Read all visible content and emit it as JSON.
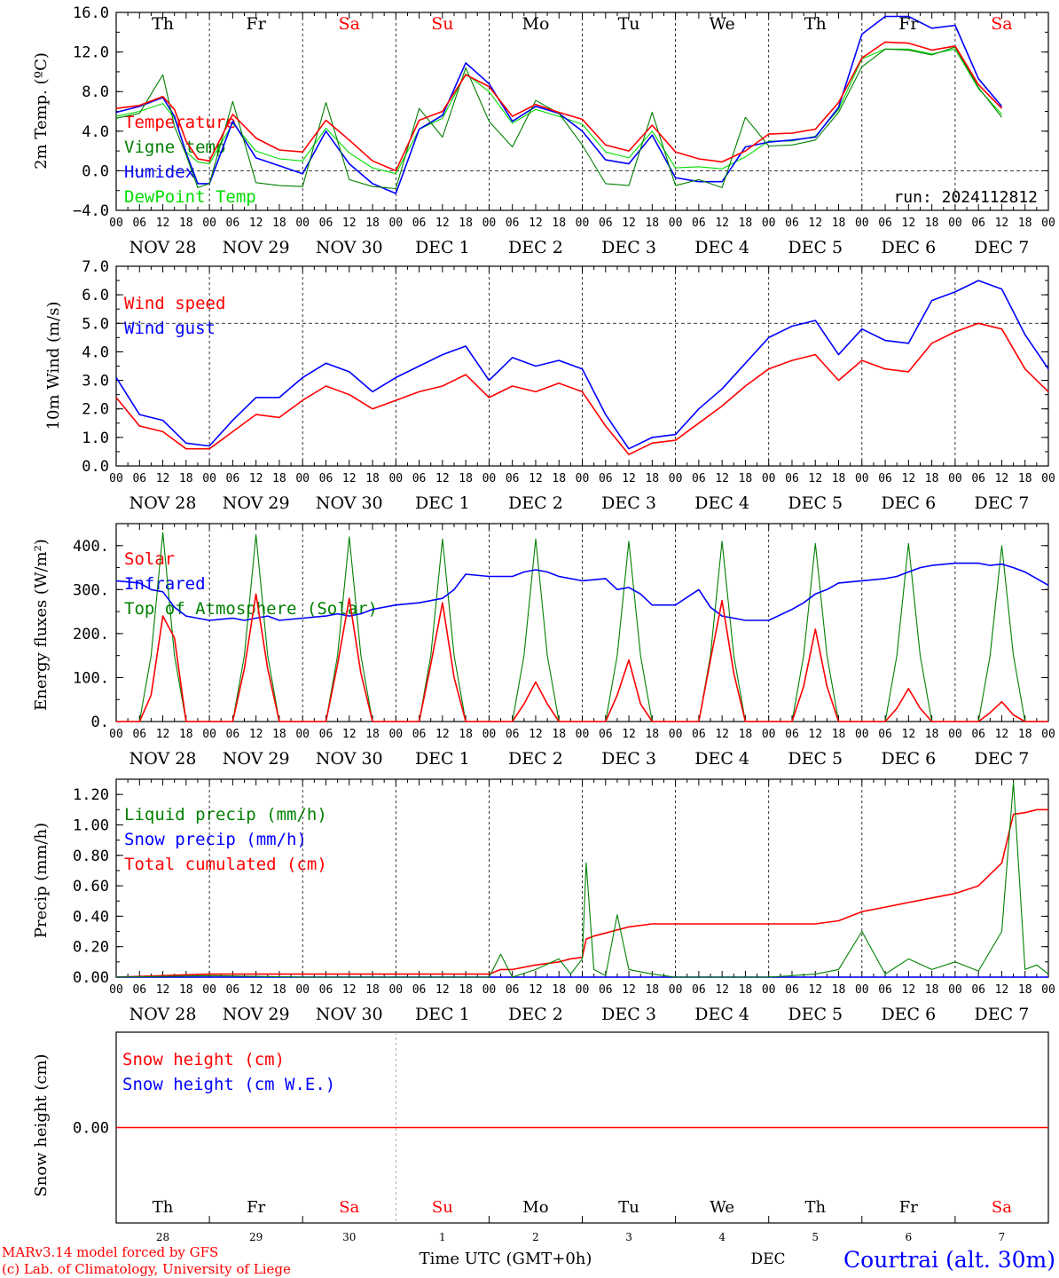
{
  "days": {
    "names": [
      "Th",
      "Fr",
      "Sa",
      "Su",
      "Mo",
      "Tu",
      "We",
      "Th",
      "Fr",
      "Sa"
    ],
    "weekend_flags": [
      false,
      false,
      true,
      true,
      false,
      false,
      false,
      false,
      false,
      true
    ],
    "dates": [
      "NOV 28",
      "NOV 29",
      "NOV 30",
      "DEC  1",
      "DEC  2",
      "DEC  3",
      "DEC  4",
      "DEC  5",
      "DEC  6",
      "DEC  7"
    ],
    "day_numbers": [
      "28",
      "29",
      "30",
      "1",
      "2",
      "3",
      "4",
      "5",
      "6",
      "7"
    ],
    "hour_ticks": [
      "00",
      "06",
      "12",
      "18"
    ],
    "end_tick": "00"
  },
  "colors": {
    "red": "#ff0000",
    "green": "#008000",
    "blue": "#0000ff",
    "lightgreen": "#00dd00",
    "gray": "#555555"
  },
  "footer": {
    "model": "MARv3.14 model forced by GFS",
    "copyright": "(c) Lab. of Climatology, University of Liege",
    "time_label": "Time UTC (GMT+0h)",
    "month_label": "DEC",
    "station": "Courtrai (alt. 30m)"
  },
  "chart_data": [
    {
      "type": "line",
      "ylabel": "2m Temp. (ºC)",
      "ylim": [
        -4,
        16
      ],
      "yticks": [
        "16.0",
        "12.0",
        "8.0",
        "4.0",
        "0.0",
        "−4.0"
      ],
      "ytick_values": [
        16,
        12,
        8,
        4,
        0,
        -4
      ],
      "hline": 0,
      "run_label": "run: 2024112812",
      "x_hours": [
        0,
        6,
        12,
        15,
        18,
        21,
        24,
        30,
        36,
        42,
        48,
        54,
        60,
        66,
        72,
        78,
        84,
        90,
        96,
        102,
        108,
        114,
        120,
        126,
        132,
        138,
        144,
        150,
        156,
        162,
        168,
        174,
        180,
        186,
        192,
        198,
        204,
        210,
        216,
        222,
        228,
        234,
        240
      ],
      "series": [
        {
          "name": "Temperature",
          "color": "red",
          "values": [
            6.3,
            6.6,
            7.5,
            6.2,
            3.0,
            1.2,
            1.0,
            5.7,
            3.3,
            2.1,
            1.9,
            5.1,
            3.1,
            1.0,
            0.0,
            5.1,
            6.0,
            9.7,
            8.5,
            5.5,
            6.7,
            5.9,
            5.2,
            2.6,
            2.0,
            4.6,
            1.9,
            1.2,
            0.9,
            2.0,
            3.7,
            3.8,
            4.2,
            6.9,
            11.4,
            13.0,
            12.9,
            12.2,
            12.6,
            8.7,
            6.3,
            null,
            null
          ]
        },
        {
          "name": "Vigne temp",
          "color": "green",
          "values": [
            5.3,
            5.8,
            9.7,
            4.5,
            1.6,
            -1.7,
            -1.3,
            7.0,
            -1.2,
            -1.5,
            -1.6,
            6.9,
            -0.9,
            -1.6,
            -1.8,
            6.3,
            3.4,
            10.4,
            5.0,
            2.4,
            7.1,
            5.8,
            2.6,
            -1.3,
            -1.5,
            5.9,
            -1.5,
            -0.9,
            -1.7,
            5.4,
            2.5,
            2.6,
            3.1,
            5.9,
            10.5,
            12.3,
            12.2,
            11.7,
            12.5,
            8.4,
            5.4,
            null,
            null
          ]
        },
        {
          "name": "Humidex",
          "color": "blue",
          "values": [
            5.9,
            6.5,
            7.4,
            5.5,
            1.8,
            -1.3,
            -1.3,
            5.0,
            1.3,
            0.5,
            -0.3,
            4.0,
            0.7,
            -1.3,
            -2.3,
            4.2,
            5.6,
            10.9,
            8.8,
            5.0,
            6.5,
            5.8,
            4.0,
            1.1,
            0.7,
            3.6,
            -0.7,
            -1.1,
            -1.1,
            2.4,
            2.9,
            3.1,
            3.4,
            6.4,
            13.8,
            15.6,
            15.6,
            14.4,
            14.7,
            9.3,
            6.5,
            null,
            null
          ]
        },
        {
          "name": "DewPoint Temp",
          "color": "lightgreen",
          "values": [
            5.5,
            6.0,
            6.8,
            5.3,
            1.9,
            0.9,
            0.7,
            4.8,
            2.0,
            1.2,
            1.0,
            4.3,
            1.8,
            0.3,
            -0.3,
            4.2,
            5.3,
            9.8,
            8.0,
            4.8,
            6.2,
            5.5,
            4.7,
            1.9,
            1.3,
            4.0,
            0.3,
            0.4,
            0.2,
            1.4,
            3.0,
            3.0,
            3.5,
            6.2,
            11.3,
            12.3,
            12.3,
            11.8,
            12.3,
            8.3,
            5.7,
            null,
            null
          ]
        }
      ]
    },
    {
      "type": "line",
      "ylabel": "10m Wind (m/s)",
      "ylim": [
        0,
        7
      ],
      "yticks": [
        "7.0",
        "6.0",
        "5.0",
        "4.0",
        "3.0",
        "2.0",
        "1.0",
        "0.0"
      ],
      "ytick_values": [
        7,
        6,
        5,
        4,
        3,
        2,
        1,
        0
      ],
      "hline": 5,
      "x_hours": [
        0,
        6,
        12,
        18,
        24,
        30,
        36,
        42,
        48,
        54,
        60,
        66,
        72,
        78,
        84,
        90,
        96,
        102,
        108,
        114,
        120,
        126,
        132,
        138,
        144,
        150,
        156,
        162,
        168,
        174,
        180,
        186,
        192,
        198,
        204,
        210,
        216,
        222,
        228,
        234,
        240
      ],
      "series": [
        {
          "name": "Wind speed",
          "color": "red",
          "values": [
            2.4,
            1.4,
            1.2,
            0.6,
            0.6,
            1.2,
            1.8,
            1.7,
            2.3,
            2.8,
            2.5,
            2.0,
            2.3,
            2.6,
            2.8,
            3.2,
            2.4,
            2.8,
            2.6,
            2.9,
            2.6,
            1.4,
            0.4,
            0.8,
            0.9,
            1.5,
            2.1,
            2.8,
            3.4,
            3.7,
            3.9,
            3.0,
            3.7,
            3.4,
            3.3,
            4.3,
            4.7,
            5.0,
            4.8,
            3.4,
            2.6
          ]
        },
        {
          "name": "Wind gust",
          "color": "blue",
          "values": [
            3.1,
            1.8,
            1.6,
            0.8,
            0.7,
            1.6,
            2.4,
            2.4,
            3.1,
            3.6,
            3.3,
            2.6,
            3.1,
            3.5,
            3.9,
            4.2,
            3.0,
            3.8,
            3.5,
            3.7,
            3.4,
            1.8,
            0.6,
            1.0,
            1.1,
            2.0,
            2.7,
            3.6,
            4.5,
            4.9,
            5.1,
            3.9,
            4.8,
            4.4,
            4.3,
            5.8,
            6.1,
            6.5,
            6.2,
            4.6,
            3.4
          ]
        }
      ]
    },
    {
      "type": "line",
      "ylabel": "Energy fluxes (W/m²)",
      "ylim": [
        0,
        450
      ],
      "yticks": [
        "400.",
        "300.",
        "200.",
        "100.",
        "0."
      ],
      "ytick_values": [
        400,
        300,
        200,
        100,
        0
      ],
      "x_hours": [
        0,
        6,
        9,
        12,
        15,
        18,
        24,
        30,
        33,
        36,
        39,
        42,
        48,
        54,
        57,
        60,
        63,
        66,
        72,
        78,
        81,
        84,
        87,
        90,
        96,
        102,
        105,
        108,
        111,
        114,
        120,
        126,
        129,
        132,
        135,
        138,
        144,
        150,
        153,
        156,
        159,
        162,
        168,
        174,
        177,
        180,
        183,
        186,
        192,
        198,
        201,
        204,
        207,
        210,
        216,
        222,
        225,
        228,
        231,
        234,
        240
      ],
      "series": [
        {
          "name": "Solar",
          "color": "red",
          "values": [
            0,
            0,
            60,
            240,
            190,
            0,
            0,
            0,
            120,
            290,
            120,
            0,
            0,
            0,
            130,
            280,
            110,
            0,
            0,
            0,
            130,
            270,
            100,
            0,
            0,
            0,
            40,
            90,
            40,
            0,
            0,
            0,
            60,
            140,
            40,
            0,
            0,
            0,
            140,
            275,
            110,
            0,
            0,
            0,
            80,
            210,
            80,
            0,
            0,
            0,
            30,
            75,
            30,
            0,
            0,
            0,
            20,
            45,
            15,
            0,
            0
          ]
        },
        {
          "name": "Infrared",
          "color": "blue",
          "values": [
            320,
            315,
            300,
            295,
            260,
            240,
            230,
            235,
            230,
            235,
            240,
            230,
            235,
            240,
            245,
            240,
            245,
            255,
            265,
            270,
            275,
            280,
            300,
            335,
            330,
            330,
            340,
            345,
            340,
            330,
            320,
            325,
            300,
            305,
            290,
            265,
            265,
            300,
            260,
            240,
            235,
            230,
            230,
            255,
            270,
            290,
            300,
            315,
            320,
            325,
            330,
            340,
            350,
            355,
            360,
            360,
            355,
            358,
            350,
            340,
            310
          ]
        },
        {
          "name": "Top of Atmosphere (Solar)",
          "color": "green",
          "values": [
            0,
            0,
            150,
            430,
            150,
            0,
            0,
            0,
            150,
            425,
            150,
            0,
            0,
            0,
            150,
            420,
            150,
            0,
            0,
            0,
            150,
            415,
            150,
            0,
            0,
            0,
            150,
            415,
            150,
            0,
            0,
            0,
            150,
            410,
            150,
            0,
            0,
            0,
            150,
            410,
            150,
            0,
            0,
            0,
            150,
            405,
            150,
            0,
            0,
            0,
            150,
            405,
            150,
            0,
            0,
            0,
            150,
            400,
            150,
            0,
            0
          ]
        }
      ]
    },
    {
      "type": "line",
      "ylabel": "Precip (mm/h)",
      "ylim": [
        0,
        1.3
      ],
      "yticks": [
        "1.20",
        "1.00",
        "0.80",
        "0.60",
        "0.40",
        "0.20",
        "0.00"
      ],
      "ytick_values": [
        1.2,
        1.0,
        0.8,
        0.6,
        0.4,
        0.2,
        0.0
      ],
      "x_hours": [
        0,
        24,
        48,
        72,
        96,
        99,
        102,
        108,
        114,
        117,
        120,
        121,
        123,
        126,
        129,
        132,
        138,
        144,
        168,
        180,
        186,
        192,
        198,
        204,
        210,
        216,
        222,
        228,
        231,
        234,
        237,
        240
      ],
      "series": [
        {
          "name": "Liquid precip (mm/h)",
          "color": "green",
          "values": [
            0,
            0.01,
            0,
            0,
            0,
            0.15,
            0,
            0.05,
            0.12,
            0.02,
            0.12,
            0.75,
            0.05,
            0.01,
            0.41,
            0.05,
            0.02,
            0,
            0,
            0.02,
            0.05,
            0.3,
            0.02,
            0.12,
            0.05,
            0.1,
            0.04,
            0.3,
            1.28,
            0.05,
            0.08,
            0.02
          ]
        },
        {
          "name": "Snow precip (mm/h)",
          "color": "blue",
          "values": [
            0,
            0,
            0,
            0,
            0,
            0,
            0,
            0,
            0,
            0,
            0,
            0,
            0,
            0,
            0,
            0,
            0,
            0,
            0,
            0,
            0,
            0,
            0,
            0,
            0,
            0,
            0,
            0,
            0,
            0,
            0,
            0
          ]
        },
        {
          "name": "Total cumulated (cm)",
          "color": "red",
          "values": [
            0,
            0.02,
            0.02,
            0.02,
            0.02,
            0.05,
            0.05,
            0.08,
            0.1,
            0.12,
            0.13,
            0.25,
            0.27,
            0.29,
            0.31,
            0.33,
            0.35,
            0.35,
            0.35,
            0.35,
            0.37,
            0.43,
            0.46,
            0.49,
            0.52,
            0.55,
            0.6,
            0.75,
            1.07,
            1.08,
            1.1,
            1.1
          ]
        }
      ]
    },
    {
      "type": "line",
      "ylabel": "Snow height (cm)",
      "ylim": [
        -1,
        1
      ],
      "yticks": [
        "0.00"
      ],
      "ytick_values": [
        0
      ],
      "x_hours": [
        0,
        240
      ],
      "series": [
        {
          "name": "Snow height (cm)",
          "color": "red",
          "values": [
            0,
            0
          ]
        },
        {
          "name": "Snow height (cm W.E.)",
          "color": "blue",
          "values": [
            null,
            null
          ]
        }
      ]
    }
  ]
}
